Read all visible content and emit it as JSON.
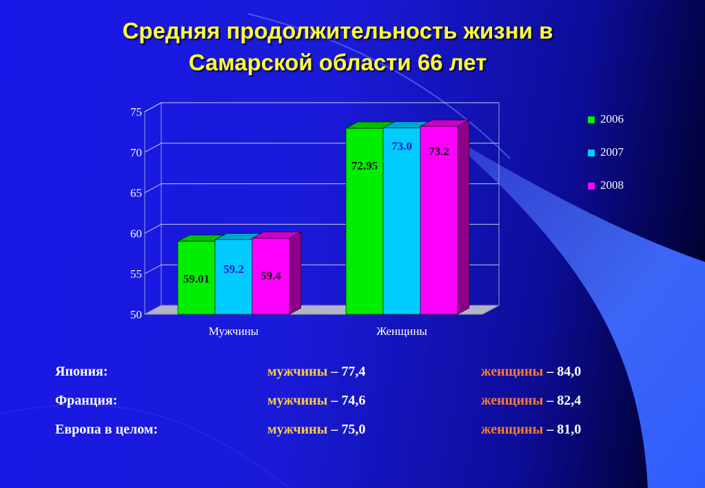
{
  "title": "Средняя продолжительность жизни в Самарской области 66 лет",
  "chart_data": {
    "type": "bar",
    "categories": [
      "Мужчины",
      "Женщины"
    ],
    "series": [
      {
        "name": "2006",
        "values": [
          59.01,
          72.95
        ],
        "labels": [
          "59.01",
          "72.95"
        ],
        "color": "#00ee00",
        "label_color": "#1a1a1a"
      },
      {
        "name": "2007",
        "values": [
          59.2,
          73.0
        ],
        "labels": [
          "59.2",
          "73.0"
        ],
        "color": "#00ccff",
        "label_color": "#1a1adc"
      },
      {
        "name": "2008",
        "values": [
          59.4,
          73.2
        ],
        "labels": [
          "59.4",
          "73.2"
        ],
        "color": "#ff00ff",
        "label_color": "#1a1a1a"
      }
    ],
    "ylim": [
      50,
      75
    ],
    "yticks": [
      50,
      55,
      60,
      65,
      70,
      75
    ],
    "grid": true,
    "legend": "right"
  },
  "stats": [
    {
      "country": "Япония:",
      "men_label": "мужчины",
      "men_value": "– 77,4",
      "women_label": "женщины",
      "women_value": "– 84,0"
    },
    {
      "country": "Франция:",
      "men_label": "мужчины",
      "men_value": "– 74,6",
      "women_label": "женщины",
      "women_value": "– 82,4"
    },
    {
      "country": "Европа в целом:",
      "men_label": "мужчины",
      "men_value": "– 75,0",
      "women_label": "женщины",
      "women_value": "– 81,0"
    }
  ],
  "colors": {
    "title": "#ffff33",
    "men_label": "#ffcc44",
    "women_label": "#ff7a30"
  }
}
